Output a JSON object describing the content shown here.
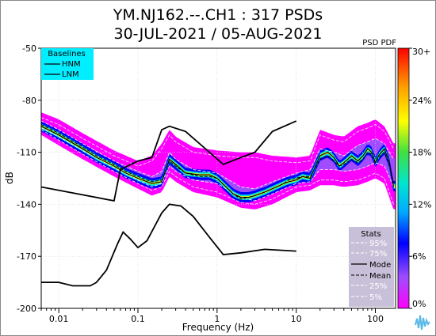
{
  "chart_data": {
    "type": "heatmap",
    "title": "YM.NJ162.--.CH1 : 317 PSDs",
    "subtitle": "30-JUL-2021 / 05-AUG-2021",
    "xlabel": "Frequency (Hz)",
    "ylabel": "dB",
    "x_scale": "log",
    "xlim": [
      0.006,
      180
    ],
    "ylim": [
      -200,
      -50
    ],
    "x_ticks": [
      {
        "value": 0.01,
        "label": "0.01"
      },
      {
        "value": 0.1,
        "label": "0.1"
      },
      {
        "value": 1,
        "label": "1"
      },
      {
        "value": 10,
        "label": "10"
      },
      {
        "value": 100,
        "label": "100"
      }
    ],
    "y_ticks": [
      {
        "value": -50,
        "label": "-50"
      },
      {
        "value": -80,
        "label": "-80"
      },
      {
        "value": -110,
        "label": "-110"
      },
      {
        "value": -140,
        "label": "-140"
      },
      {
        "value": -170,
        "label": "-170"
      },
      {
        "value": -200,
        "label": "-200"
      }
    ],
    "colorbar": {
      "label": "PSD PDF",
      "ticks": [
        "0%",
        "6%",
        "12%",
        "18%",
        "24%",
        "30+"
      ],
      "range": [
        0,
        30
      ],
      "colors": [
        "#ff00ff",
        "#9f4dff",
        "#0000ff",
        "#00aaff",
        "#00e5d0",
        "#40e040",
        "#ffff00",
        "#ffa000",
        "#ff0000"
      ]
    },
    "baselines_legend": {
      "title": "Baselines",
      "items": [
        "HNM",
        "LNM"
      ],
      "background": "#00eeff"
    },
    "stats_legend": {
      "title": "Stats",
      "items": [
        "95%",
        "75%",
        "Mode",
        "Mean",
        "25%",
        "5%"
      ],
      "background": "#c8c0d8"
    },
    "hnm": {
      "x": [
        0.006,
        0.05,
        0.06,
        0.1,
        0.15,
        0.2,
        0.25,
        0.4,
        0.8,
        1.2,
        2,
        3,
        5,
        10
      ],
      "y": [
        -130,
        -138,
        -120,
        -115,
        -113,
        -97,
        -95,
        -98,
        -110,
        -117,
        -113,
        -110,
        -98,
        -92
      ]
    },
    "lnm": {
      "x": [
        0.006,
        0.01,
        0.015,
        0.025,
        0.03,
        0.04,
        0.055,
        0.065,
        0.08,
        0.1,
        0.13,
        0.2,
        0.25,
        0.35,
        0.5,
        0.8,
        1.2,
        2,
        4,
        10
      ],
      "y": [
        -185,
        -185,
        -187,
        -187,
        -185,
        -178,
        -163,
        -156,
        -160,
        -165,
        -161,
        -145,
        -140,
        -141,
        -147,
        -159,
        -169,
        -168,
        -166,
        -167
      ]
    },
    "mode": {
      "x": [
        0.006,
        0.01,
        0.02,
        0.03,
        0.05,
        0.07,
        0.1,
        0.15,
        0.2,
        0.25,
        0.3,
        0.4,
        0.6,
        0.8,
        1,
        1.3,
        1.6,
        2,
        2.5,
        3,
        4,
        5,
        7,
        8,
        10,
        12,
        15,
        20,
        25,
        30,
        35,
        40,
        50,
        60,
        70,
        80,
        90,
        100,
        110,
        130,
        150,
        170
      ],
      "y": [
        -95,
        -100,
        -108,
        -113,
        -118,
        -122,
        -125,
        -128,
        -127,
        -114,
        -117,
        -122,
        -123,
        -123,
        -125,
        -130,
        -134,
        -136,
        -136,
        -135,
        -133,
        -131,
        -128,
        -127,
        -126,
        -124,
        -125,
        -112,
        -110,
        -113,
        -118,
        -116,
        -112,
        -115,
        -112,
        -108,
        -110,
        -116,
        -112,
        -108,
        -116,
        -130
      ]
    },
    "mean": {
      "x": [
        0.006,
        0.01,
        0.02,
        0.03,
        0.05,
        0.07,
        0.1,
        0.15,
        0.2,
        0.25,
        0.3,
        0.4,
        0.6,
        0.8,
        1,
        1.3,
        1.6,
        2,
        2.5,
        3,
        4,
        5,
        7,
        8,
        10,
        12,
        15,
        20,
        25,
        30,
        35,
        40,
        50,
        60,
        70,
        80,
        90,
        100,
        110,
        130,
        150,
        170
      ],
      "y": [
        -94,
        -99,
        -107,
        -112,
        -117,
        -121,
        -124,
        -127,
        -126,
        -115,
        -118,
        -122,
        -124,
        -124,
        -125,
        -130,
        -134,
        -137,
        -136,
        -135,
        -133,
        -131,
        -128,
        -126,
        -125,
        -124,
        -124,
        -114,
        -112,
        -115,
        -118,
        -117,
        -114,
        -116,
        -114,
        -110,
        -111,
        -116,
        -113,
        -110,
        -117,
        -128
      ]
    },
    "p95": {
      "x": [
        0.006,
        0.01,
        0.02,
        0.05,
        0.1,
        0.15,
        0.2,
        0.25,
        0.3,
        0.5,
        1,
        2,
        3,
        5,
        10,
        15,
        20,
        30,
        40,
        60,
        80,
        100,
        130,
        170
      ],
      "y": [
        -90,
        -94,
        -102,
        -112,
        -118,
        -115,
        -108,
        -100,
        -104,
        -110,
        -112,
        -113,
        -113,
        -115,
        -116,
        -115,
        -100,
        -103,
        -104,
        -98,
        -96,
        -94,
        -98,
        -108
      ]
    },
    "p75": {
      "x": [
        0.006,
        0.01,
        0.02,
        0.05,
        0.1,
        0.15,
        0.2,
        0.25,
        0.3,
        0.5,
        1,
        2,
        3,
        5,
        10,
        15,
        20,
        30,
        40,
        60,
        80,
        100,
        130,
        170
      ],
      "y": [
        -92,
        -97,
        -105,
        -115,
        -121,
        -124,
        -121,
        -110,
        -114,
        -120,
        -122,
        -130,
        -131,
        -127,
        -122,
        -120,
        -108,
        -110,
        -112,
        -106,
        -104,
        -102,
        -105,
        -114
      ]
    },
    "p25": {
      "x": [
        0.006,
        0.01,
        0.02,
        0.05,
        0.1,
        0.15,
        0.2,
        0.25,
        0.3,
        0.5,
        1,
        2,
        3,
        5,
        10,
        15,
        20,
        30,
        40,
        60,
        80,
        100,
        130,
        170
      ],
      "y": [
        -96,
        -101,
        -109,
        -119,
        -126,
        -130,
        -128,
        -118,
        -121,
        -126,
        -128,
        -136,
        -138,
        -134,
        -128,
        -127,
        -120,
        -120,
        -121,
        -120,
        -118,
        -116,
        -118,
        -130
      ]
    },
    "p5": {
      "x": [
        0.006,
        0.01,
        0.02,
        0.05,
        0.1,
        0.15,
        0.2,
        0.25,
        0.3,
        0.5,
        1,
        2,
        3,
        5,
        10,
        15,
        20,
        30,
        40,
        60,
        80,
        100,
        130,
        170
      ],
      "y": [
        -97,
        -103,
        -111,
        -121,
        -128,
        -132,
        -130,
        -121,
        -124,
        -130,
        -133,
        -139,
        -140,
        -137,
        -130,
        -129,
        -126,
        -126,
        -127,
        -126,
        -124,
        -122,
        -125,
        -140
      ]
    }
  }
}
